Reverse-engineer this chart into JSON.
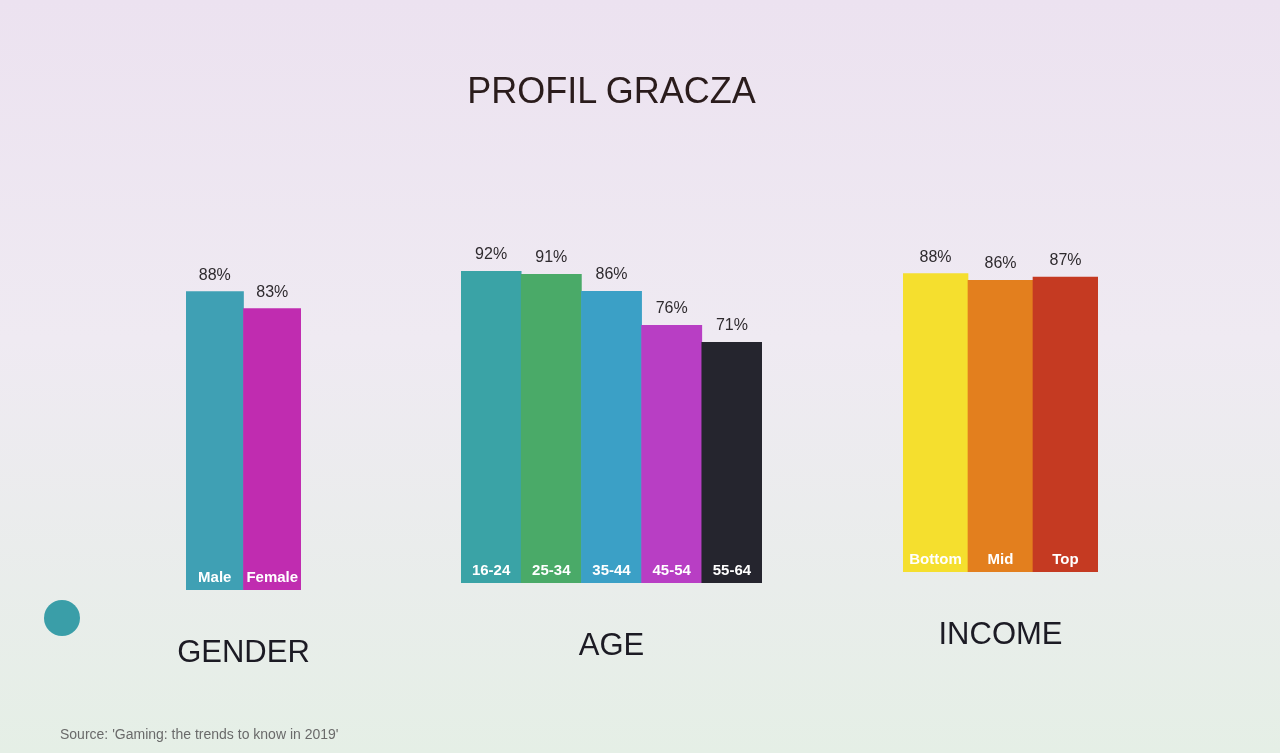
{
  "chart_data": [
    {
      "type": "bar",
      "xlabel": "GENDER",
      "categories": [
        "Male",
        "Female"
      ],
      "values": [
        88,
        83
      ],
      "colors": [
        "#3fa0b4",
        "#c02cb0"
      ],
      "value_labels": [
        "88%",
        "83%"
      ],
      "tick_labels": "x",
      "annotations": [
        "Source: 'Gaming: the trends to know in 2019'"
      ]
    },
    {
      "type": "bar",
      "title": "PROFIL GRACZA",
      "xlabel": "AGE",
      "categories": [
        "16-24",
        "25-34",
        "35-44",
        "45-54",
        "55-64"
      ],
      "values": [
        92,
        91,
        86,
        76,
        71
      ],
      "colors": [
        "#3aa3a6",
        "#4aaa68",
        "#3ba0c6",
        "#b83ec4",
        "#25252e"
      ],
      "value_labels": [
        "92%",
        "91%",
        "86%",
        "76%",
        "71%"
      ],
      "tick_labels": "x"
    },
    {
      "type": "bar",
      "xlabel": "INCOME",
      "categories": [
        "Bottom",
        "Mid",
        "Top"
      ],
      "values": [
        88,
        86,
        87
      ],
      "colors": [
        "#f5df2e",
        "#e37f1e",
        "#c53a22"
      ],
      "value_labels": [
        "88%",
        "86%",
        "87%"
      ],
      "tick_labels": "x"
    }
  ]
}
